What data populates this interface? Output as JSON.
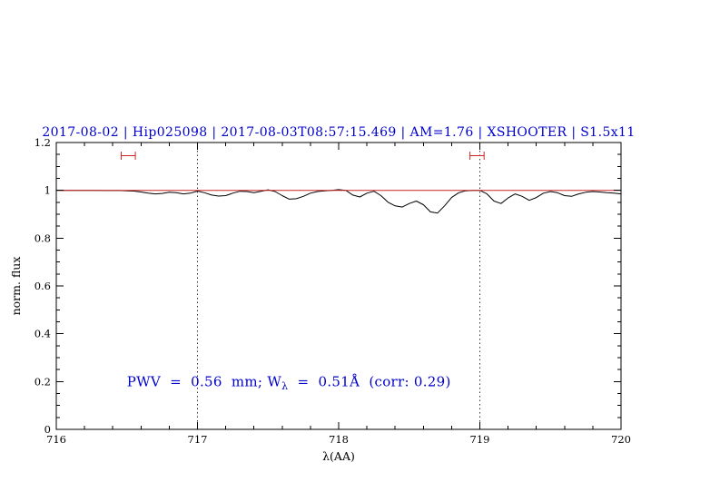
{
  "chart_data": {
    "type": "line",
    "title": "2017-08-02 | Hip025098 | 2017-08-03T08:57:15.469 | AM=1.76 | XSHOOTER | S1.5x11",
    "title_color": "#0000cd",
    "xlabel": "λ(AA)",
    "ylabel": "norm. flux",
    "xlim": [
      716,
      720
    ],
    "ylim": [
      0,
      1.2
    ],
    "xticks": [
      716,
      717,
      718,
      719,
      720
    ],
    "xtick_labels": [
      "716",
      "717",
      "718",
      "719",
      "720"
    ],
    "yticks": [
      0,
      0.2,
      0.4,
      0.6,
      0.8,
      1,
      1.2
    ],
    "ytick_labels": [
      "0",
      "0.2",
      "0.4",
      "0.6",
      "0.8",
      "1",
      "1.2"
    ],
    "minor_tick_steps": {
      "x": 0.2,
      "y": 0.05
    },
    "grid_vlines": [
      717,
      719
    ],
    "grid_style": "dotted-vertical",
    "legend": "none",
    "series": [
      {
        "name": "spectrum",
        "color": "#000000",
        "width": 1,
        "x": [
          716,
          716.05,
          716.1,
          716.15,
          716.2,
          716.25,
          716.3,
          716.35,
          716.4,
          716.45,
          716.5,
          716.55,
          716.6,
          716.65,
          716.7,
          716.75,
          716.8,
          716.85,
          716.9,
          716.95,
          717,
          717.05,
          717.1,
          717.15,
          717.2,
          717.25,
          717.3,
          717.35,
          717.4,
          717.45,
          717.5,
          717.55,
          717.6,
          717.65,
          717.7,
          717.75,
          717.8,
          717.85,
          717.9,
          717.95,
          718,
          718.05,
          718.1,
          718.15,
          718.2,
          718.25,
          718.3,
          718.35,
          718.4,
          718.45,
          718.5,
          718.55,
          718.6,
          718.65,
          718.7,
          718.75,
          718.8,
          718.85,
          718.9,
          718.95,
          719,
          719.05,
          719.1,
          719.15,
          719.2,
          719.25,
          719.3,
          719.35,
          719.4,
          719.45,
          719.5,
          719.55,
          719.6,
          719.65,
          719.7,
          719.75,
          719.8,
          719.85,
          719.9,
          719.95,
          720
        ],
        "y": [
          1,
          1,
          1,
          1,
          1,
          1,
          1,
          0.999,
          0.999,
          0.999,
          0.998,
          0.997,
          0.993,
          0.988,
          0.985,
          0.987,
          0.992,
          0.99,
          0.985,
          0.988,
          0.997,
          0.99,
          0.98,
          0.976,
          0.978,
          0.988,
          0.996,
          0.995,
          0.99,
          0.996,
          1.002,
          0.995,
          0.978,
          0.963,
          0.965,
          0.975,
          0.988,
          0.995,
          0.998,
          1,
          1.003,
          1,
          0.98,
          0.972,
          0.988,
          0.996,
          0.978,
          0.95,
          0.935,
          0.93,
          0.945,
          0.955,
          0.94,
          0.91,
          0.905,
          0.935,
          0.97,
          0.99,
          0.998,
          1,
          1,
          0.985,
          0.955,
          0.945,
          0.968,
          0.985,
          0.975,
          0.958,
          0.97,
          0.988,
          0.995,
          0.99,
          0.978,
          0.975,
          0.985,
          0.992,
          0.995,
          0.993,
          0.99,
          0.988,
          0.985
        ]
      },
      {
        "name": "continuum-fit",
        "color": "#cc2222",
        "width": 1,
        "x": [
          716,
          720
        ],
        "y": [
          1,
          1
        ]
      }
    ],
    "line_markers": [
      {
        "x1": 716.46,
        "x2": 716.56,
        "y": 1.145,
        "color": "#cc2222"
      },
      {
        "x1": 718.93,
        "x2": 719.03,
        "y": 1.145,
        "color": "#cc2222"
      }
    ],
    "annotation": {
      "pre": "PWV  =  0.56  mm; W",
      "sub": "λ",
      "post": "  =  0.51Å  (corr: 0.29)",
      "x": 716.5,
      "y": 0.2,
      "color": "#0000cd"
    }
  }
}
